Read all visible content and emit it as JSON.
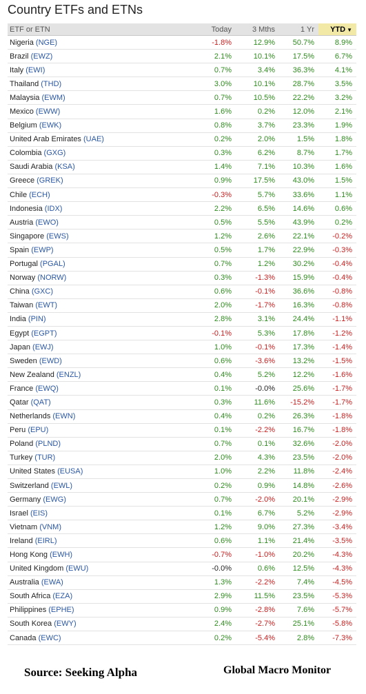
{
  "title": "Country ETFs and ETNs",
  "columns": {
    "name": "ETF or ETN",
    "today": "Today",
    "mths3": "3 Mths",
    "yr1": "1 Yr",
    "ytd": "YTD"
  },
  "sort": {
    "column": "YTD",
    "direction": "descending",
    "icon": "sort-down-triangle-icon"
  },
  "colors": {
    "positive": "#2e8b1e",
    "negative": "#c81e1e",
    "ticker": "#2a57a5",
    "sorted_header": "#f3e9a6"
  },
  "rows": [
    {
      "country": "Nigeria",
      "ticker": "(NGE)",
      "today": "-1.8%",
      "mths3": "12.9%",
      "yr1": "50.7%",
      "ytd": "8.9%"
    },
    {
      "country": "Brazil",
      "ticker": "(EWZ)",
      "today": "2.1%",
      "mths3": "10.1%",
      "yr1": "17.5%",
      "ytd": "6.7%"
    },
    {
      "country": "Italy",
      "ticker": "(EWI)",
      "today": "0.7%",
      "mths3": "3.4%",
      "yr1": "36.3%",
      "ytd": "4.1%"
    },
    {
      "country": "Thailand",
      "ticker": "(THD)",
      "today": "3.0%",
      "mths3": "10.1%",
      "yr1": "28.7%",
      "ytd": "3.5%"
    },
    {
      "country": "Malaysia",
      "ticker": "(EWM)",
      "today": "0.7%",
      "mths3": "10.5%",
      "yr1": "22.2%",
      "ytd": "3.2%"
    },
    {
      "country": "Mexico",
      "ticker": "(EWW)",
      "today": "1.6%",
      "mths3": "0.2%",
      "yr1": "12.0%",
      "ytd": "2.1%"
    },
    {
      "country": "Belgium",
      "ticker": "(EWK)",
      "today": "0.8%",
      "mths3": "3.7%",
      "yr1": "23.3%",
      "ytd": "1.9%"
    },
    {
      "country": "United Arab Emirates",
      "ticker": "(UAE)",
      "today": "0.2%",
      "mths3": "2.0%",
      "yr1": "1.5%",
      "ytd": "1.8%"
    },
    {
      "country": "Colombia",
      "ticker": "(GXG)",
      "today": "0.3%",
      "mths3": "6.2%",
      "yr1": "8.7%",
      "ytd": "1.7%"
    },
    {
      "country": "Saudi Arabia",
      "ticker": "(KSA)",
      "today": "1.4%",
      "mths3": "7.1%",
      "yr1": "10.3%",
      "ytd": "1.6%"
    },
    {
      "country": "Greece",
      "ticker": "(GREK)",
      "today": "0.9%",
      "mths3": "17.5%",
      "yr1": "43.0%",
      "ytd": "1.5%"
    },
    {
      "country": "Chile",
      "ticker": "(ECH)",
      "today": "-0.3%",
      "mths3": "5.7%",
      "yr1": "33.6%",
      "ytd": "1.1%"
    },
    {
      "country": "Indonesia",
      "ticker": "(IDX)",
      "today": "2.2%",
      "mths3": "6.5%",
      "yr1": "14.6%",
      "ytd": "0.6%"
    },
    {
      "country": "Austria",
      "ticker": "(EWO)",
      "today": "0.5%",
      "mths3": "5.5%",
      "yr1": "43.9%",
      "ytd": "0.2%"
    },
    {
      "country": "Singapore",
      "ticker": "(EWS)",
      "today": "1.2%",
      "mths3": "2.6%",
      "yr1": "22.1%",
      "ytd": "-0.2%"
    },
    {
      "country": "Spain",
      "ticker": "(EWP)",
      "today": "0.5%",
      "mths3": "1.7%",
      "yr1": "22.9%",
      "ytd": "-0.3%"
    },
    {
      "country": "Portugal",
      "ticker": "(PGAL)",
      "today": "0.7%",
      "mths3": "1.2%",
      "yr1": "30.2%",
      "ytd": "-0.4%"
    },
    {
      "country": "Norway",
      "ticker": "(NORW)",
      "today": "0.3%",
      "mths3": "-1.3%",
      "yr1": "15.9%",
      "ytd": "-0.4%"
    },
    {
      "country": "China",
      "ticker": "(GXC)",
      "today": "0.6%",
      "mths3": "-0.1%",
      "yr1": "36.6%",
      "ytd": "-0.8%"
    },
    {
      "country": "Taiwan",
      "ticker": "(EWT)",
      "today": "2.0%",
      "mths3": "-1.7%",
      "yr1": "16.3%",
      "ytd": "-0.8%"
    },
    {
      "country": "India",
      "ticker": "(PIN)",
      "today": "2.8%",
      "mths3": "3.1%",
      "yr1": "24.4%",
      "ytd": "-1.1%"
    },
    {
      "country": "Egypt",
      "ticker": "(EGPT)",
      "today": "-0.1%",
      "mths3": "5.3%",
      "yr1": "17.8%",
      "ytd": "-1.2%"
    },
    {
      "country": "Japan",
      "ticker": "(EWJ)",
      "today": "1.0%",
      "mths3": "-0.1%",
      "yr1": "17.3%",
      "ytd": "-1.4%"
    },
    {
      "country": "Sweden",
      "ticker": "(EWD)",
      "today": "0.6%",
      "mths3": "-3.6%",
      "yr1": "13.2%",
      "ytd": "-1.5%"
    },
    {
      "country": "New Zealand",
      "ticker": "(ENZL)",
      "today": "0.4%",
      "mths3": "5.2%",
      "yr1": "12.2%",
      "ytd": "-1.6%"
    },
    {
      "country": "France",
      "ticker": "(EWQ)",
      "today": "0.1%",
      "mths3": "-0.0%",
      "yr1": "25.6%",
      "ytd": "-1.7%"
    },
    {
      "country": "Qatar",
      "ticker": "(QAT)",
      "today": "0.3%",
      "mths3": "11.6%",
      "yr1": "-15.2%",
      "ytd": "-1.7%"
    },
    {
      "country": "Netherlands",
      "ticker": "(EWN)",
      "today": "0.4%",
      "mths3": "0.2%",
      "yr1": "26.3%",
      "ytd": "-1.8%"
    },
    {
      "country": "Peru",
      "ticker": "(EPU)",
      "today": "0.1%",
      "mths3": "-2.2%",
      "yr1": "16.7%",
      "ytd": "-1.8%"
    },
    {
      "country": "Poland",
      "ticker": "(PLND)",
      "today": "0.7%",
      "mths3": "0.1%",
      "yr1": "32.6%",
      "ytd": "-2.0%"
    },
    {
      "country": "Turkey",
      "ticker": "(TUR)",
      "today": "2.0%",
      "mths3": "4.3%",
      "yr1": "23.5%",
      "ytd": "-2.0%"
    },
    {
      "country": "United States",
      "ticker": "(EUSA)",
      "today": "1.0%",
      "mths3": "2.2%",
      "yr1": "11.8%",
      "ytd": "-2.4%"
    },
    {
      "country": "Switzerland",
      "ticker": "(EWL)",
      "today": "0.2%",
      "mths3": "0.9%",
      "yr1": "14.8%",
      "ytd": "-2.6%"
    },
    {
      "country": "Germany",
      "ticker": "(EWG)",
      "today": "0.7%",
      "mths3": "-2.0%",
      "yr1": "20.1%",
      "ytd": "-2.9%"
    },
    {
      "country": "Israel",
      "ticker": "(EIS)",
      "today": "0.1%",
      "mths3": "6.7%",
      "yr1": "5.2%",
      "ytd": "-2.9%"
    },
    {
      "country": "Vietnam",
      "ticker": "(VNM)",
      "today": "1.2%",
      "mths3": "9.0%",
      "yr1": "27.3%",
      "ytd": "-3.4%"
    },
    {
      "country": "Ireland",
      "ticker": "(EIRL)",
      "today": "0.6%",
      "mths3": "1.1%",
      "yr1": "21.4%",
      "ytd": "-3.5%"
    },
    {
      "country": "Hong Kong",
      "ticker": "(EWH)",
      "today": "-0.7%",
      "mths3": "-1.0%",
      "yr1": "20.2%",
      "ytd": "-4.3%"
    },
    {
      "country": "United Kingdom",
      "ticker": "(EWU)",
      "today": "-0.0%",
      "mths3": "0.6%",
      "yr1": "12.5%",
      "ytd": "-4.3%"
    },
    {
      "country": "Australia",
      "ticker": "(EWA)",
      "today": "1.3%",
      "mths3": "-2.2%",
      "yr1": "7.4%",
      "ytd": "-4.5%"
    },
    {
      "country": "South Africa",
      "ticker": "(EZA)",
      "today": "2.9%",
      "mths3": "11.5%",
      "yr1": "23.5%",
      "ytd": "-5.3%"
    },
    {
      "country": "Philippines",
      "ticker": "(EPHE)",
      "today": "0.9%",
      "mths3": "-2.8%",
      "yr1": "7.6%",
      "ytd": "-5.7%"
    },
    {
      "country": "South Korea",
      "ticker": "(EWY)",
      "today": "2.4%",
      "mths3": "-2.7%",
      "yr1": "25.1%",
      "ytd": "-5.8%"
    },
    {
      "country": "Canada",
      "ticker": "(EWC)",
      "today": "0.2%",
      "mths3": "-5.4%",
      "yr1": "2.8%",
      "ytd": "-7.3%"
    }
  ],
  "footer": {
    "source": "Source:  Seeking Alpha",
    "brand": "Global Macro Monitor"
  }
}
